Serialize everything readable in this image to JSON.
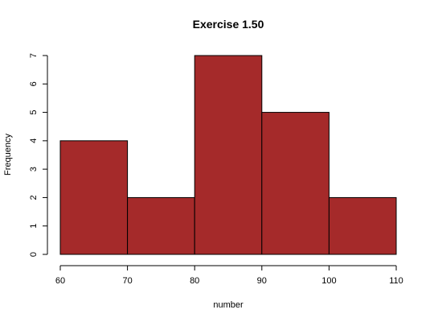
{
  "chart_data": {
    "type": "bar",
    "title": "Exercise 1.50",
    "xlabel": "number",
    "ylabel": "Frequency",
    "bins": [
      {
        "start": 60,
        "end": 70,
        "count": 4
      },
      {
        "start": 70,
        "end": 80,
        "count": 2
      },
      {
        "start": 80,
        "end": 90,
        "count": 7
      },
      {
        "start": 90,
        "end": 100,
        "count": 5
      },
      {
        "start": 100,
        "end": 110,
        "count": 2
      }
    ],
    "xlim": [
      60,
      110
    ],
    "ylim": [
      0,
      7
    ],
    "x_ticks": [
      60,
      70,
      80,
      90,
      100,
      110
    ],
    "y_ticks": [
      0,
      1,
      2,
      3,
      4,
      5,
      6,
      7
    ],
    "bar_color": "#a52a2a",
    "grid": false,
    "legend": "none"
  }
}
